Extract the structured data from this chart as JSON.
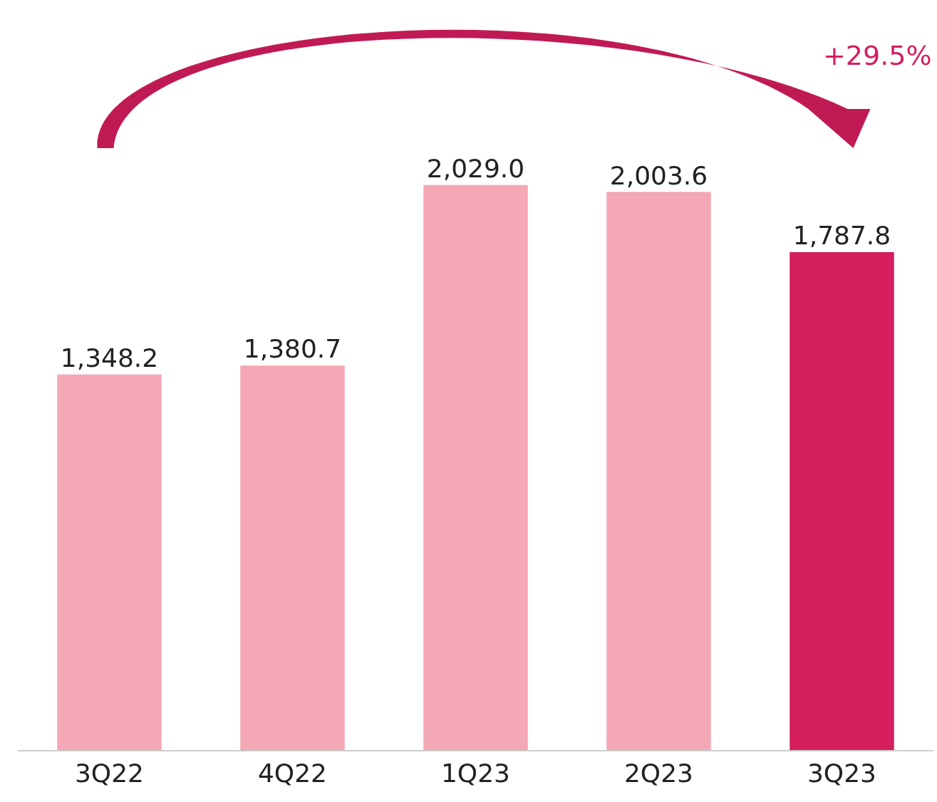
{
  "chart_data": {
    "type": "bar",
    "categories": [
      "3Q22",
      "4Q22",
      "1Q23",
      "2Q23",
      "3Q23"
    ],
    "values": [
      1348.2,
      1380.7,
      2029.0,
      2003.6,
      1787.8
    ],
    "colors": [
      "#f4a7b5",
      "#f4a7b5",
      "#f4a7b5",
      "#f4a7b5",
      "#d41e5e"
    ],
    "value_labels": [
      "1,348.2",
      "1,380.7",
      "2,029.0",
      "2,003.6",
      "1,787.8"
    ],
    "ylim": [
      0,
      2693
    ],
    "tick_labels": "x",
    "legend": false,
    "annotations": [
      "+29.5%"
    ]
  }
}
